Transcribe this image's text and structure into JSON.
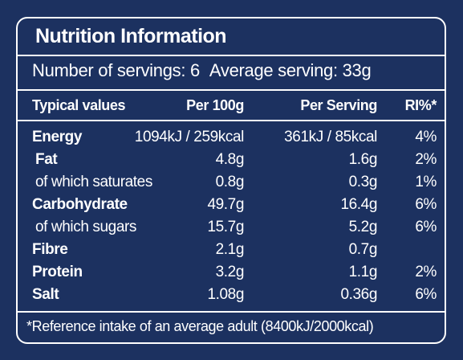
{
  "title": "Nutrition Information",
  "servings": {
    "count_label": "Number of servings: 6",
    "average_label": "Average serving: 33g"
  },
  "headers": {
    "name": "Typical values",
    "per100": "Per 100g",
    "serving": "Per Serving",
    "ri": "RI%*"
  },
  "rows": [
    {
      "name": "Energy",
      "per100": "1094kJ / 259kcal",
      "serving": "361kJ / 85kcal",
      "ri": "4%"
    },
    {
      "name": "Fat",
      "per100": "4.8g",
      "serving": "1.6g",
      "ri": "2%"
    },
    {
      "name": "of which saturates",
      "per100": "0.8g",
      "serving": "0.3g",
      "ri": "1%"
    },
    {
      "name": "Carbohydrate",
      "per100": "49.7g",
      "serving": "16.4g",
      "ri": "6%"
    },
    {
      "name": "of which sugars",
      "per100": "15.7g",
      "serving": "5.2g",
      "ri": "6%"
    },
    {
      "name": "Fibre",
      "per100": "2.1g",
      "serving": "0.7g",
      "ri": ""
    },
    {
      "name": "Protein",
      "per100": "3.2g",
      "serving": "1.1g",
      "ri": "2%"
    },
    {
      "name": "Salt",
      "per100": "1.08g",
      "serving": "0.36g",
      "ri": "6%"
    }
  ],
  "footnote": "*Reference intake of an average adult (8400kJ/2000kcal)"
}
